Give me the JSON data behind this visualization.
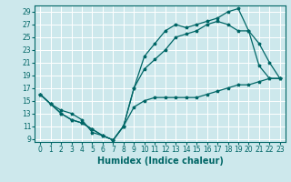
{
  "xlabel": "Humidex (Indice chaleur)",
  "background_color": "#cde8ec",
  "grid_color": "#ffffff",
  "line_color": "#006666",
  "xlim": [
    -0.5,
    23.5
  ],
  "ylim": [
    8.5,
    30
  ],
  "xticks": [
    0,
    1,
    2,
    3,
    4,
    5,
    6,
    7,
    8,
    9,
    10,
    11,
    12,
    13,
    14,
    15,
    16,
    17,
    18,
    19,
    20,
    21,
    22,
    23
  ],
  "yticks": [
    9,
    11,
    13,
    15,
    17,
    19,
    21,
    23,
    25,
    27,
    29
  ],
  "line1_x": [
    0,
    1,
    2,
    3,
    4,
    5,
    6,
    7,
    8,
    9,
    10,
    11,
    12,
    13,
    14,
    15,
    16,
    17,
    18,
    19,
    20,
    21,
    22,
    23
  ],
  "line1_y": [
    16,
    14.5,
    13,
    12,
    11.5,
    10.5,
    9.5,
    8.8,
    11,
    17,
    22,
    24,
    26,
    27,
    26.5,
    27,
    27.5,
    28,
    29,
    29.5,
    26,
    24,
    21,
    18.5
  ],
  "line2_x": [
    0,
    1,
    2,
    3,
    4,
    5,
    6,
    7,
    8,
    9,
    10,
    11,
    12,
    13,
    14,
    15,
    16,
    17,
    18,
    19,
    20,
    21,
    22,
    23
  ],
  "line2_y": [
    16,
    14.5,
    13,
    12,
    11.5,
    10.5,
    9.5,
    8.8,
    11,
    17,
    20,
    21.5,
    23,
    25,
    25.5,
    26,
    27,
    27.5,
    27,
    26,
    26,
    20.5,
    18.5,
    18.5
  ],
  "line3_x": [
    0,
    1,
    2,
    3,
    4,
    5,
    6,
    7,
    8,
    9,
    10,
    11,
    12,
    13,
    14,
    15,
    16,
    17,
    18,
    19,
    20,
    21,
    22,
    23
  ],
  "line3_y": [
    16,
    14.5,
    13.5,
    13,
    12,
    10,
    9.5,
    8.8,
    11,
    14,
    15,
    15.5,
    15.5,
    15.5,
    15.5,
    15.5,
    16,
    16.5,
    17,
    17.5,
    17.5,
    18,
    18.5,
    18.5
  ],
  "tick_fontsize": 5.5,
  "xlabel_fontsize": 7
}
